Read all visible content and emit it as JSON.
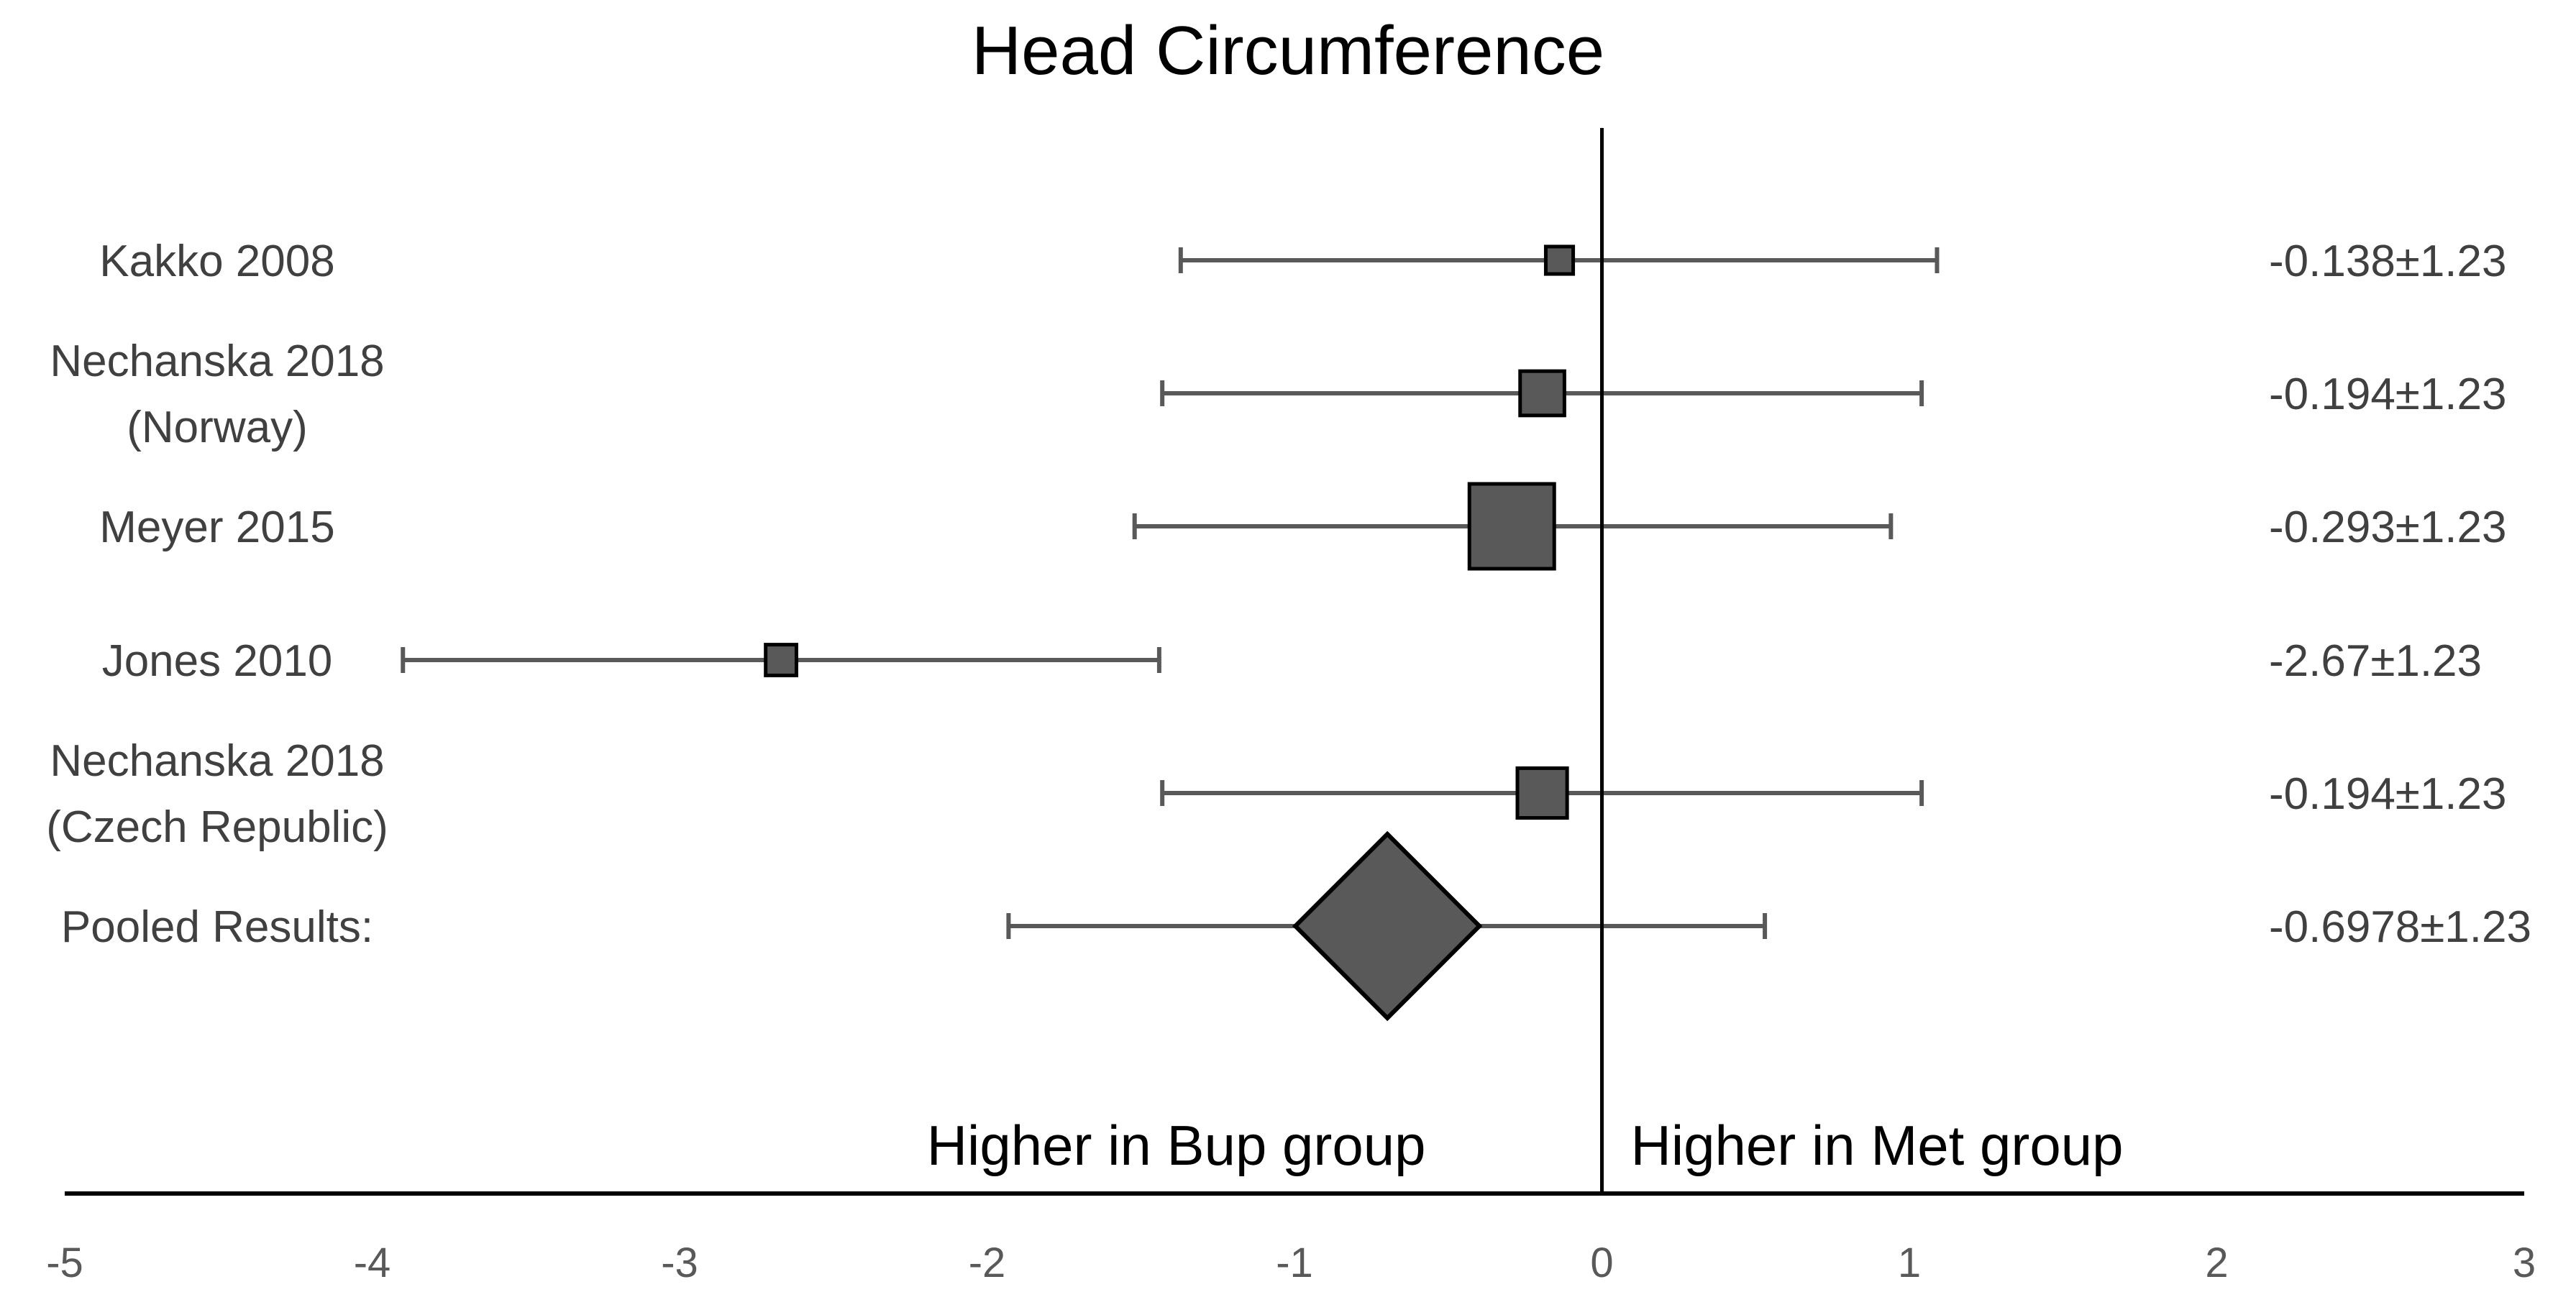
{
  "chart_data": {
    "type": "forest",
    "title": "Head Circumference",
    "xlim": [
      -5,
      3
    ],
    "x_ticks": [
      -5,
      -4,
      -3,
      -2,
      -1,
      0,
      1,
      2,
      3
    ],
    "reference_line": 0,
    "region_labels": {
      "left": "Higher in Bup group",
      "right": "Higher in Met group"
    },
    "colors": {
      "marker_fill": "#595959",
      "marker_stroke": "#000000",
      "ci_line": "#595959",
      "axis": "#000000"
    },
    "studies": [
      {
        "label_lines": [
          "Kakko 2008"
        ],
        "estimate": -0.138,
        "ci_low": -1.37,
        "ci_high": 1.09,
        "weight": 0.15,
        "value_label": "-0.138±1.23"
      },
      {
        "label_lines": [
          "Nechanska 2018",
          "(Norway)"
        ],
        "estimate": -0.194,
        "ci_low": -1.43,
        "ci_high": 1.04,
        "weight": 0.4,
        "value_label": "-0.194±1.23"
      },
      {
        "label_lines": [
          "Meyer 2015"
        ],
        "estimate": -0.293,
        "ci_low": -1.52,
        "ci_high": 0.94,
        "weight": 1.0,
        "value_label": "-0.293±1.23"
      },
      {
        "label_lines": [
          "Jones 2010"
        ],
        "estimate": -2.67,
        "ci_low": -3.9,
        "ci_high": -1.44,
        "weight": 0.2,
        "value_label": "-2.67±1.23"
      },
      {
        "label_lines": [
          "Nechanska 2018",
          "(Czech Republic)"
        ],
        "estimate": -0.194,
        "ci_low": -1.43,
        "ci_high": 1.04,
        "weight": 0.48,
        "value_label": "-0.194±1.23"
      }
    ],
    "pooled": {
      "label": "Pooled Results:",
      "estimate": -0.6978,
      "ci_low": -1.93,
      "ci_high": 0.53,
      "value_label": "-0.6978±1.23"
    }
  }
}
